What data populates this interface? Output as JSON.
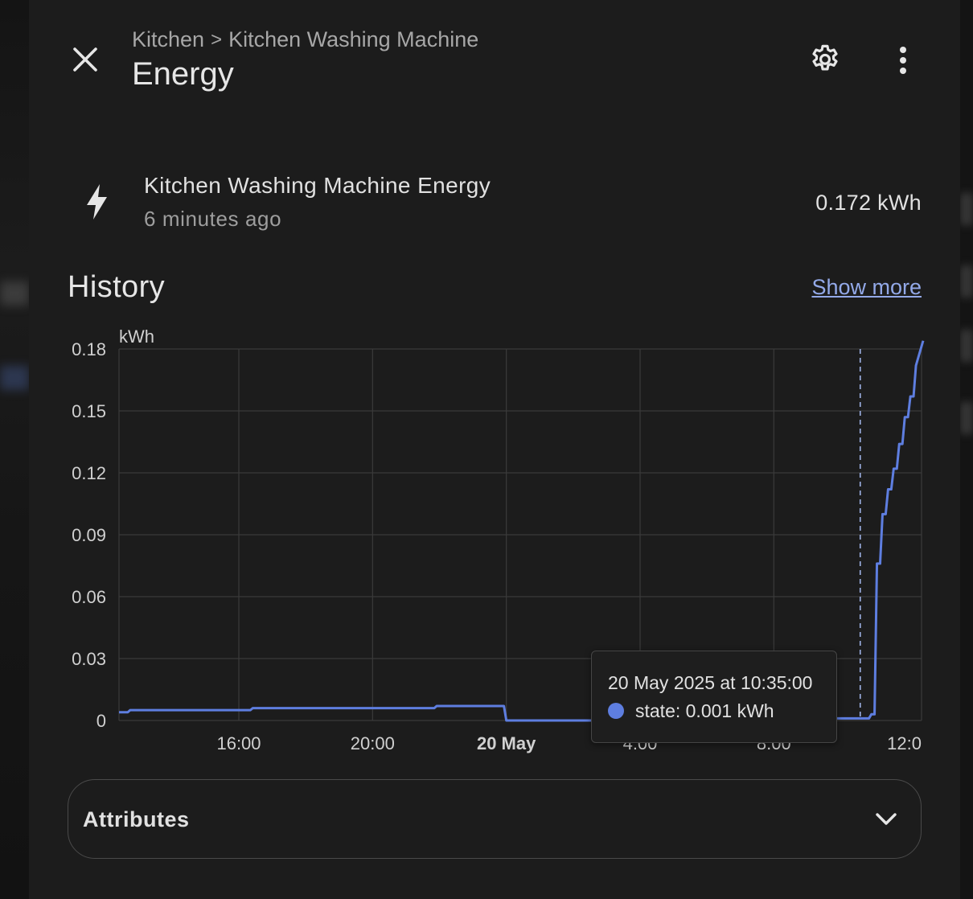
{
  "header": {
    "breadcrumb": [
      "Kitchen",
      "Kitchen Washing Machine"
    ],
    "breadcrumb_separator": ">",
    "title": "Energy"
  },
  "entity": {
    "icon": "lightning-bolt-icon",
    "name": "Kitchen Washing Machine Energy",
    "last_changed": "6 minutes ago",
    "value": "0.172 kWh"
  },
  "history": {
    "title": "History",
    "show_more_label": "Show more"
  },
  "chart_data": {
    "type": "line",
    "ylabel": "kWh",
    "ylim": [
      0,
      0.18
    ],
    "y_ticks": [
      "0",
      "0.03",
      "0.06",
      "0.09",
      "0.12",
      "0.15",
      "0.18"
    ],
    "x_ticks": [
      {
        "label": "16:00",
        "bold": false
      },
      {
        "label": "20:00",
        "bold": false
      },
      {
        "label": "20 May",
        "bold": true
      },
      {
        "label": "4:00",
        "bold": false
      },
      {
        "label": "8:00",
        "bold": false
      },
      {
        "label": "12:0",
        "bold": false
      }
    ],
    "xlim": [
      "2025-05-19 12:25",
      "2025-05-20 12:25"
    ],
    "grid": true,
    "series": [
      {
        "color": "#5e7ee0",
        "step": true,
        "points": [
          [
            "2025-05-19 12:25",
            0.004
          ],
          [
            "2025-05-19 12:45",
            0.005
          ],
          [
            "2025-05-19 16:25",
            0.006
          ],
          [
            "2025-05-19 21:55",
            0.007
          ],
          [
            "2025-05-20 00:00",
            0.0
          ],
          [
            "2025-05-20 08:05",
            0.001
          ],
          [
            "2025-05-20 10:55",
            0.003
          ],
          [
            "2025-05-20 11:05",
            0.076
          ],
          [
            "2025-05-20 11:15",
            0.1
          ],
          [
            "2025-05-20 11:25",
            0.112
          ],
          [
            "2025-05-20 11:35",
            0.122
          ],
          [
            "2025-05-20 11:45",
            0.134
          ],
          [
            "2025-05-20 11:55",
            0.147
          ],
          [
            "2025-05-20 12:05",
            0.157
          ],
          [
            "2025-05-20 12:15",
            0.172
          ]
        ]
      }
    ],
    "cursor_time": "2025-05-20 10:35",
    "tooltip": {
      "time": "20 May 2025 at 10:35:00",
      "state": "state: 0.001 kWh"
    }
  },
  "attributes": {
    "label": "Attributes"
  }
}
